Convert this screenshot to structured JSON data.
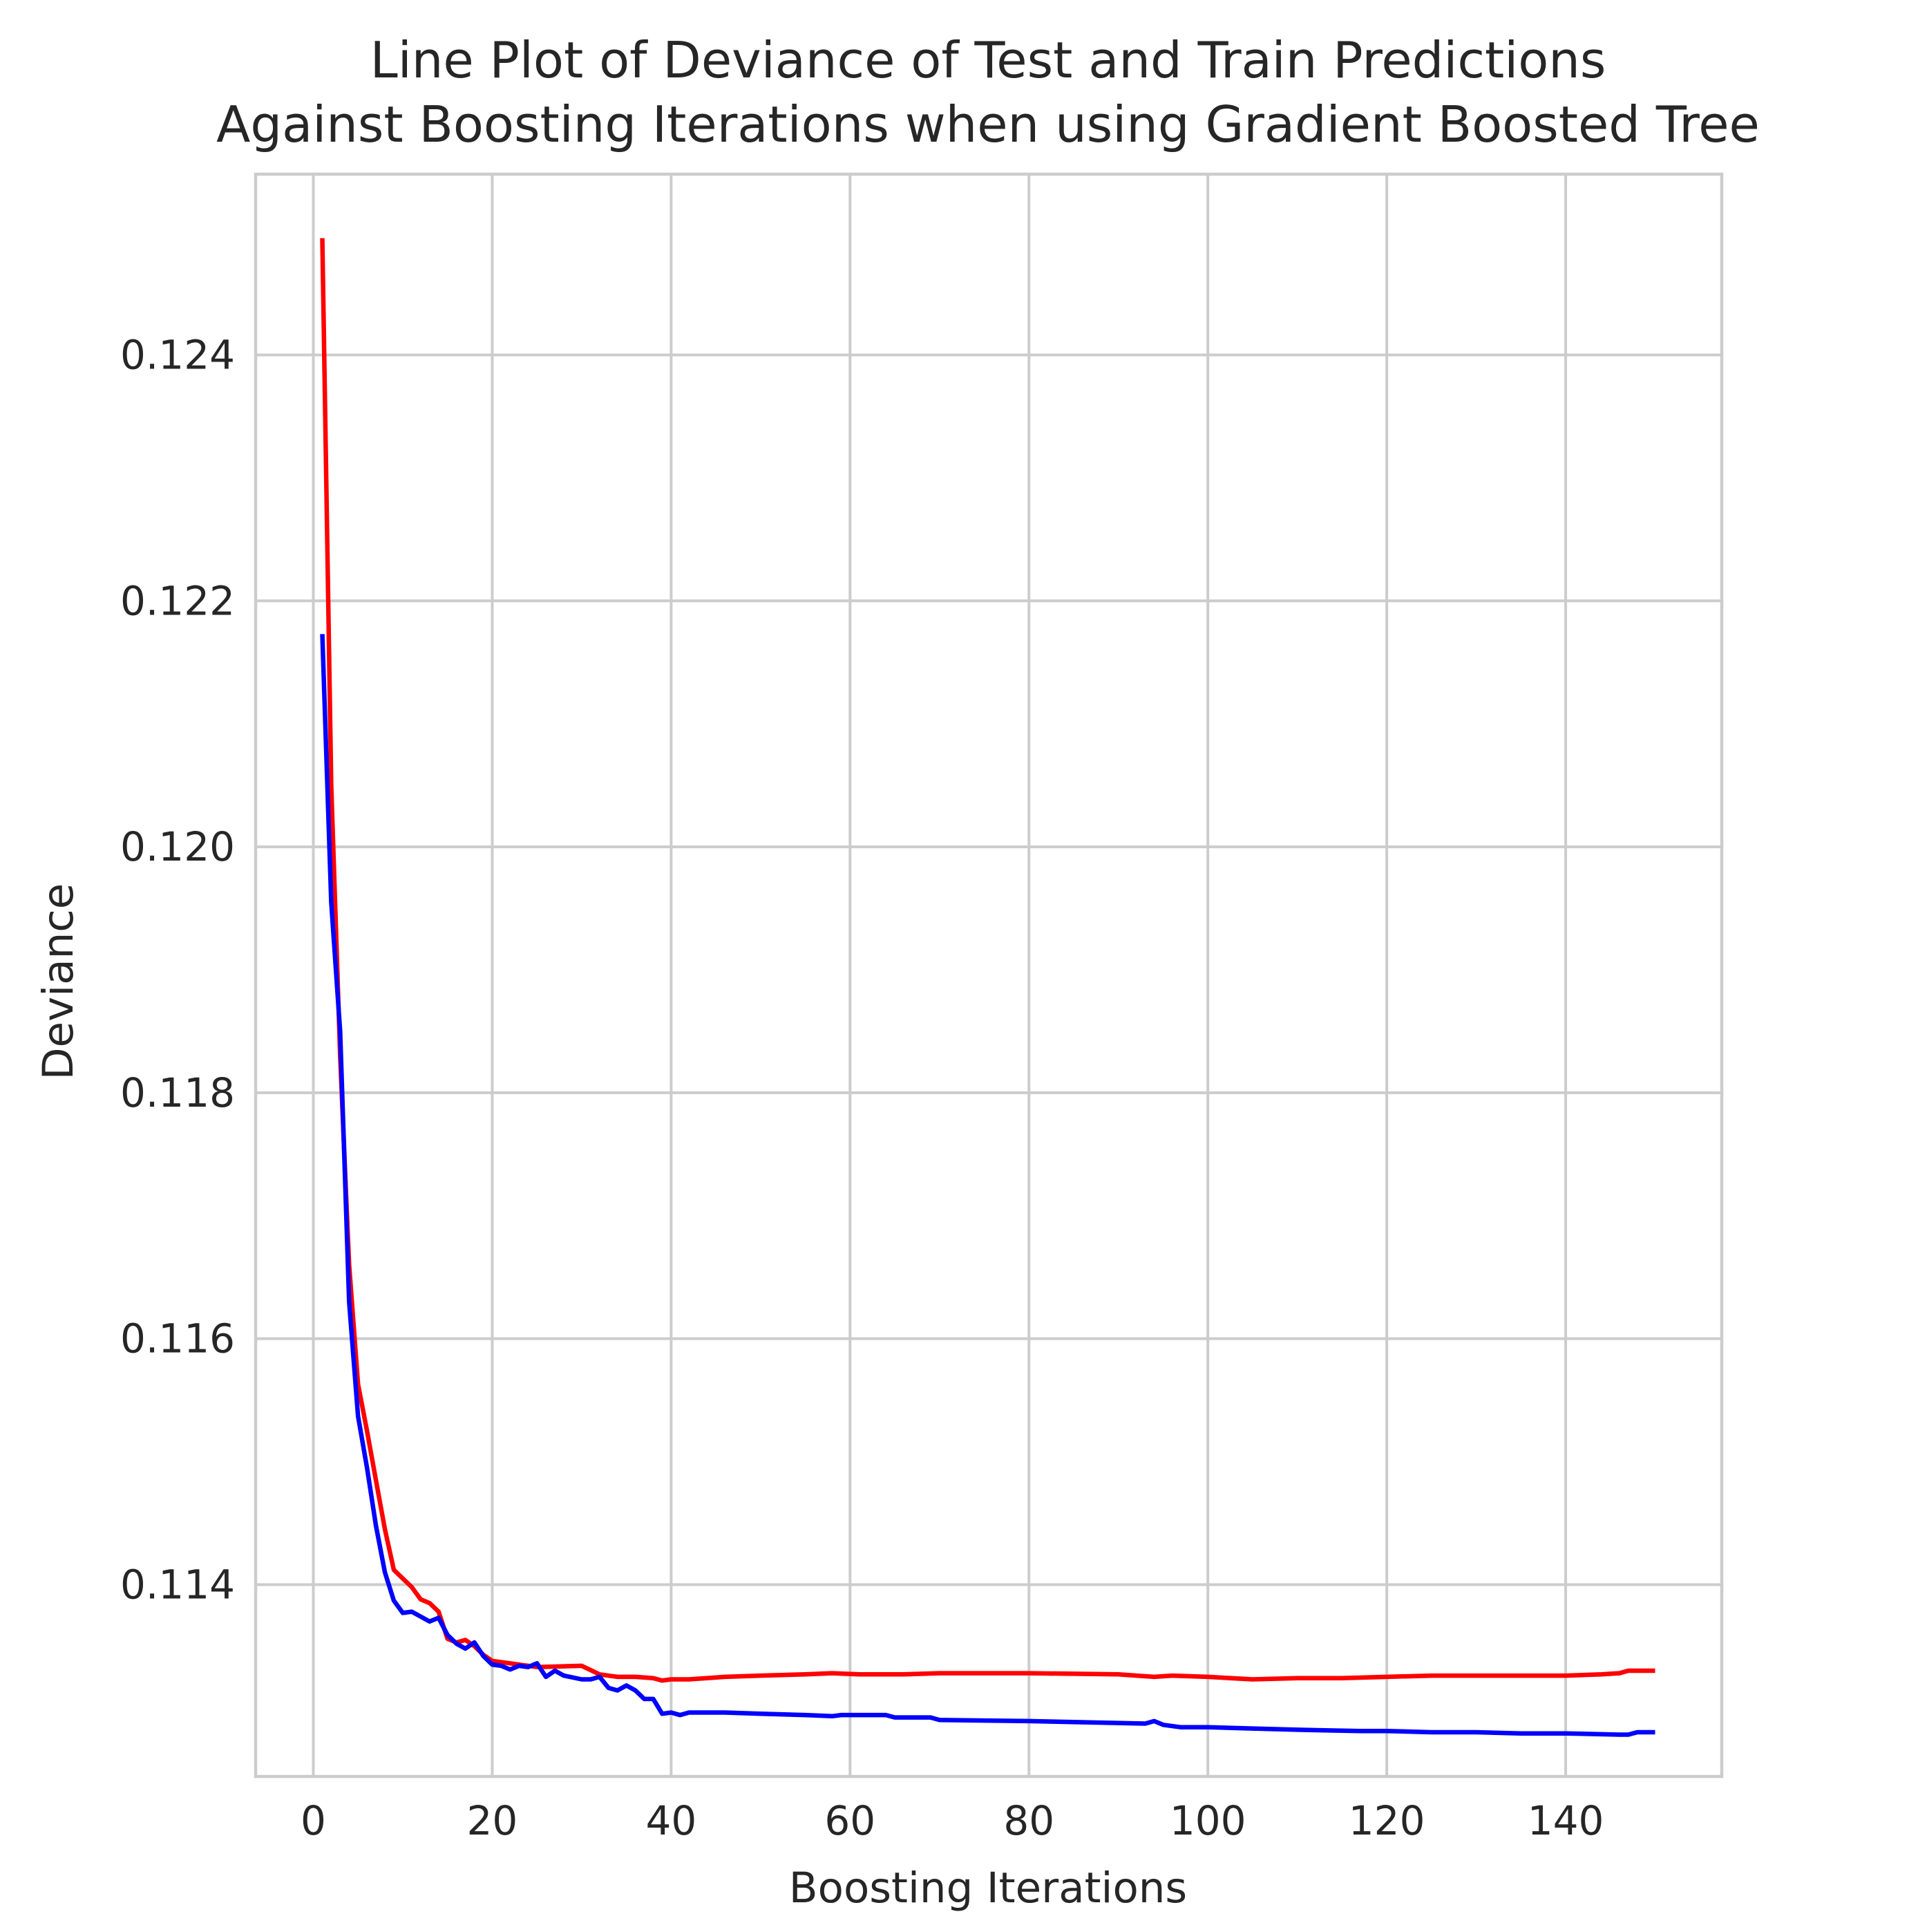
{
  "chart_data": {
    "type": "line",
    "title_lines": [
      "Line Plot of Deviance of Test and Train Predictions",
      "Against Boosting Iterations when using Gradient Boosted Tree"
    ],
    "xlabel": "Boosting Iterations",
    "ylabel": "Deviance",
    "xlim": [
      -6.45,
      157.45
    ],
    "ylim": [
      0.11244,
      0.12547
    ],
    "xticks": [
      0,
      20,
      40,
      60,
      80,
      100,
      120,
      140
    ],
    "yticks": [
      0.114,
      0.116,
      0.118,
      0.12,
      0.122,
      0.124
    ],
    "grid": true,
    "series": [
      {
        "color": "#ff0000",
        "x": [
          1,
          2,
          3,
          4,
          5,
          6,
          7,
          8,
          9,
          10,
          11,
          12,
          13,
          14,
          15,
          16,
          17,
          18,
          19,
          20,
          22,
          25,
          30,
          32,
          34,
          36,
          38,
          39,
          40,
          42,
          46,
          50,
          55,
          58,
          61,
          66,
          70,
          80,
          90,
          94,
          96,
          100,
          105,
          110,
          115,
          120,
          125,
          130,
          135,
          140,
          144,
          146,
          147,
          148,
          150
        ],
        "y": [
          0.12495,
          0.1205,
          0.1183,
          0.1166,
          0.11563,
          0.11525,
          0.11485,
          0.11445,
          0.11412,
          0.11405,
          0.11398,
          0.11388,
          0.11385,
          0.11378,
          0.11356,
          0.11353,
          0.11355,
          0.1135,
          0.11343,
          0.11338,
          0.11336,
          0.11333,
          0.11334,
          0.11327,
          0.11325,
          0.11325,
          0.11324,
          0.11322,
          0.11323,
          0.11323,
          0.11325,
          0.11326,
          0.11327,
          0.11328,
          0.11327,
          0.11327,
          0.11328,
          0.11328,
          0.11327,
          0.11325,
          0.11326,
          0.11325,
          0.11323,
          0.11324,
          0.11324,
          0.11325,
          0.11326,
          0.11326,
          0.11326,
          0.11326,
          0.11327,
          0.11328,
          0.1133,
          0.1133,
          0.1133
        ]
      },
      {
        "color": "#0000ff",
        "x": [
          1,
          2,
          3,
          4,
          5,
          6,
          7,
          8,
          9,
          10,
          11,
          12,
          13,
          14,
          15,
          16,
          17,
          18,
          19,
          20,
          21,
          22,
          23,
          24,
          25,
          26,
          27,
          28,
          30,
          31,
          32,
          33,
          34,
          35,
          36,
          37,
          38,
          39,
          40,
          41,
          42,
          43,
          44,
          46,
          50,
          55,
          58,
          59,
          61,
          62,
          64,
          65,
          67,
          69,
          70,
          80,
          93,
          94,
          95,
          97,
          100,
          105,
          110,
          117,
          120,
          125,
          130,
          135,
          140,
          146,
          147,
          148,
          150
        ],
        "y": [
          0.12173,
          0.11955,
          0.1185,
          0.1163,
          0.11537,
          0.11495,
          0.11448,
          0.1141,
          0.11387,
          0.11377,
          0.11378,
          0.11374,
          0.1137,
          0.11373,
          0.11359,
          0.11352,
          0.11348,
          0.11353,
          0.11342,
          0.11335,
          0.11334,
          0.11331,
          0.11334,
          0.11333,
          0.11336,
          0.11325,
          0.1133,
          0.11326,
          0.11323,
          0.11323,
          0.11325,
          0.11316,
          0.11314,
          0.11318,
          0.11314,
          0.11307,
          0.11307,
          0.11295,
          0.11296,
          0.11294,
          0.11296,
          0.11296,
          0.11296,
          0.11296,
          0.11295,
          0.11294,
          0.11293,
          0.11294,
          0.11294,
          0.11294,
          0.11294,
          0.11292,
          0.11292,
          0.11292,
          0.1129,
          0.11289,
          0.11287,
          0.11289,
          0.11286,
          0.11284,
          0.11284,
          0.11283,
          0.11282,
          0.11281,
          0.11281,
          0.1128,
          0.1128,
          0.11279,
          0.11279,
          0.11278,
          0.11278,
          0.1128,
          0.1128
        ]
      }
    ]
  }
}
